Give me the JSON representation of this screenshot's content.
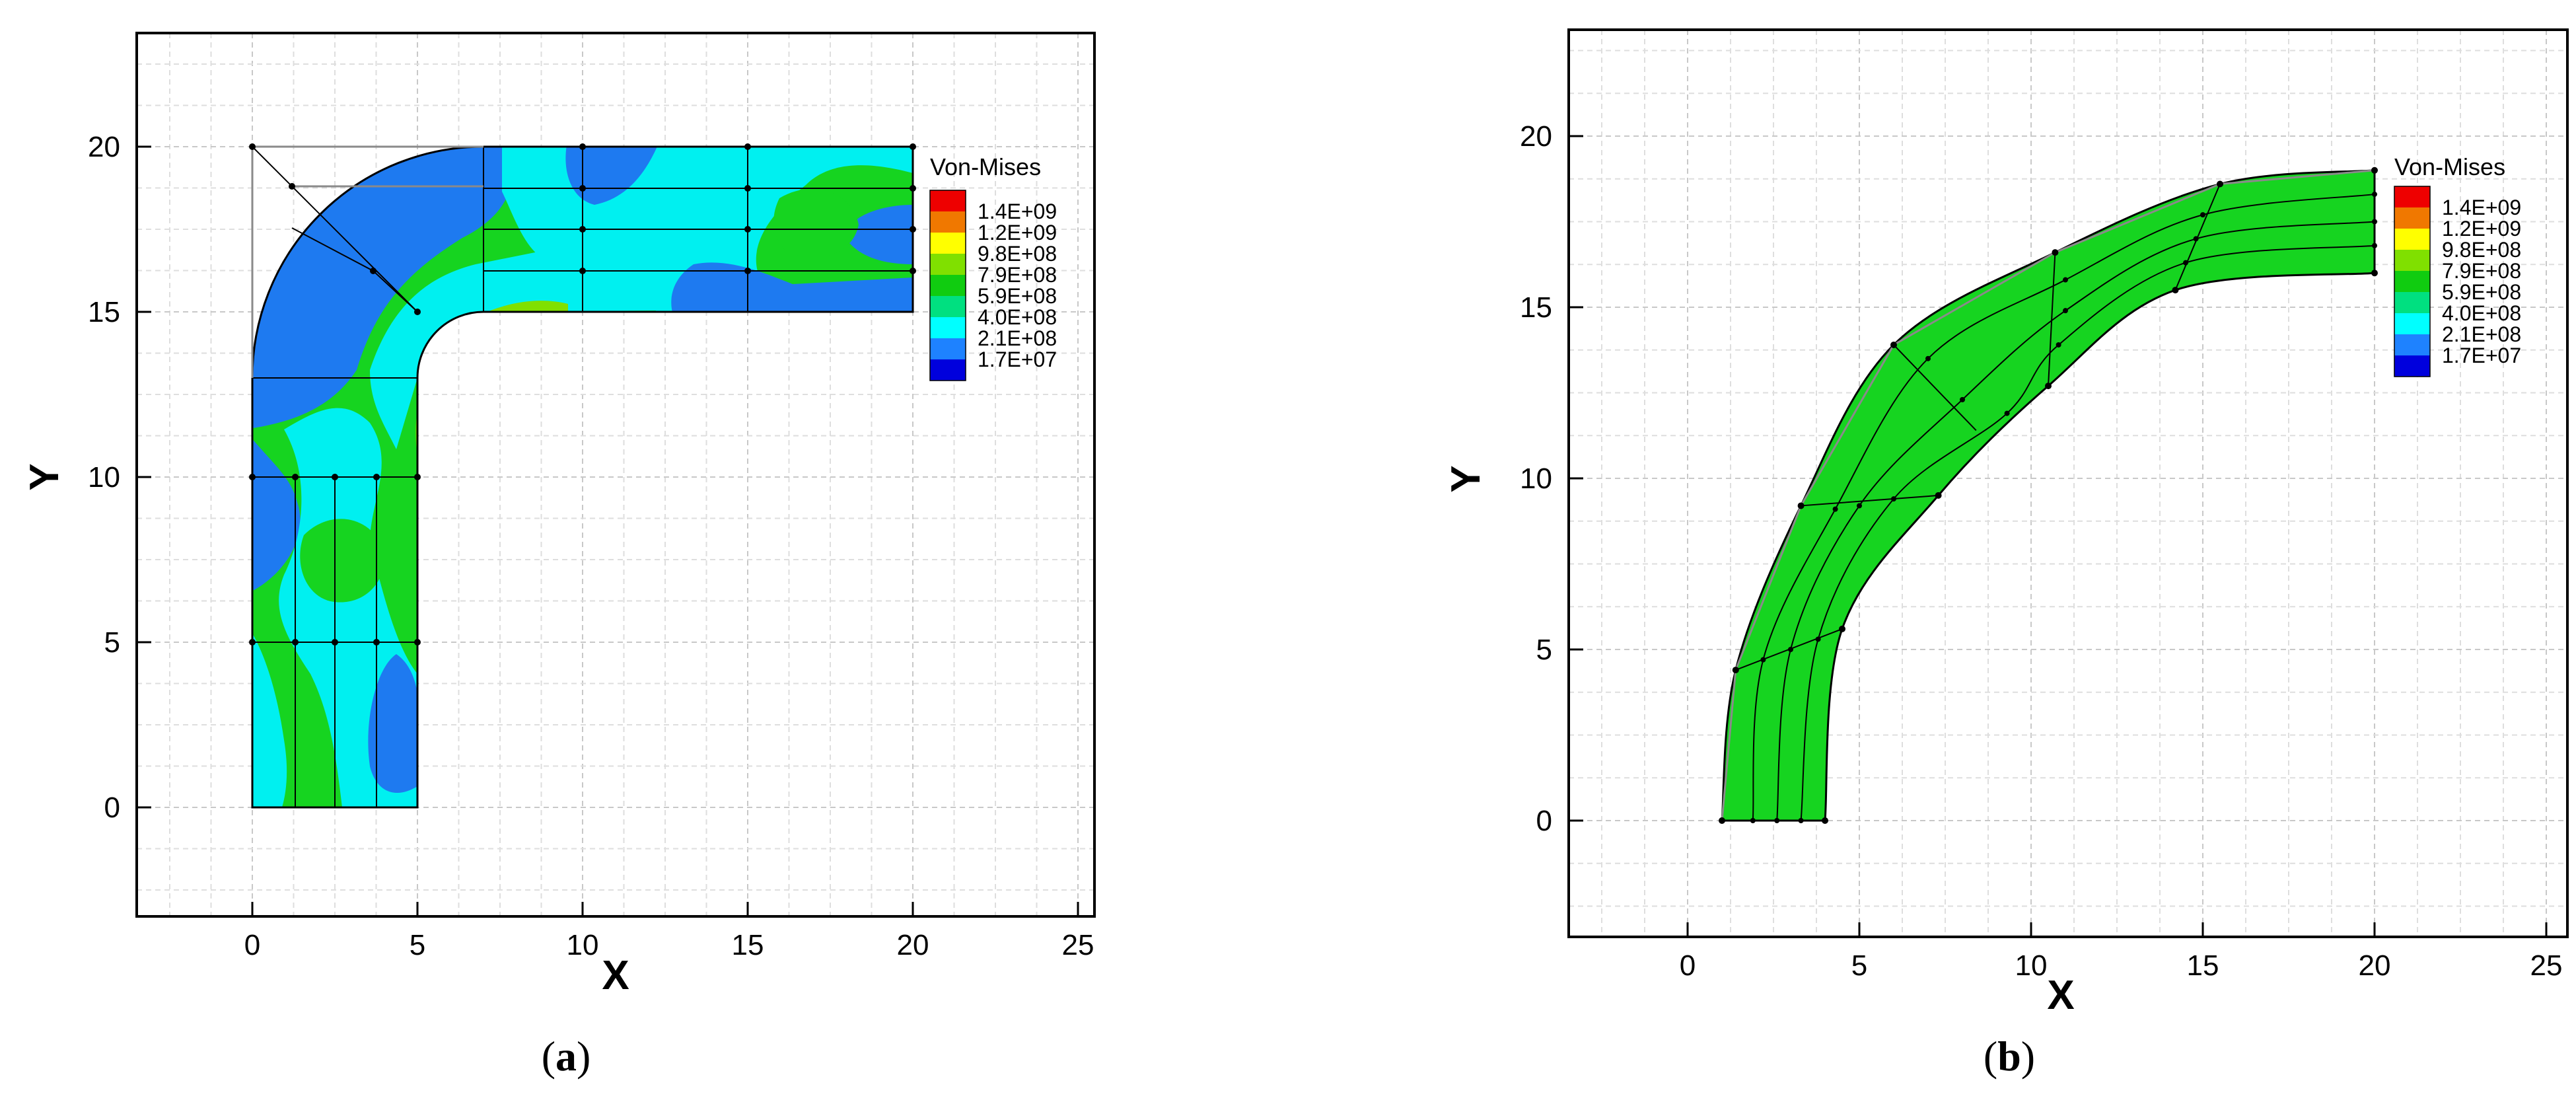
{
  "chart_data": [
    {
      "type": "contour",
      "panel": "a",
      "caption_open": "(",
      "caption_letter": "a",
      "caption_close": ")",
      "xlabel": "X",
      "ylabel": "Y",
      "xlim": [
        -3.5,
        25.5
      ],
      "ylim": [
        -3.3,
        23.2
      ],
      "x_ticks": [
        0,
        5,
        10,
        15,
        20,
        25
      ],
      "y_ticks": [
        0,
        5,
        10,
        15,
        20
      ],
      "x_tick_labels": [
        "0",
        "5",
        "10",
        "15",
        "20",
        "25"
      ],
      "y_tick_labels": [
        "0",
        "5",
        "10",
        "15",
        "20"
      ],
      "grid": true,
      "legend_title": "Von-Mises",
      "legend_levels": [
        "1.4E+09",
        "1.2E+09",
        "9.8E+08",
        "7.9E+08",
        "5.9E+08",
        "4.0E+08",
        "2.1E+08",
        "1.7E+07"
      ],
      "legend_colors": [
        "#ee0000",
        "#f07800",
        "#ffff00",
        "#80e000",
        "#10cc10",
        "#00e080",
        "#00ffff",
        "#1e82ff",
        "#0000dd"
      ],
      "legend_placement": "right",
      "fill_color": "#16d420",
      "mesh_cols_x": [
        0,
        1.25,
        2.5,
        3.75,
        5
      ],
      "mesh_rows_y": [
        15,
        16.25,
        17.5,
        18.75,
        20
      ],
      "mesh_col_x_arm": [
        5,
        10,
        15,
        20
      ],
      "mesh_row_y_arm": [
        0,
        5,
        10
      ]
    },
    {
      "type": "contour",
      "panel": "b",
      "caption_open": "(",
      "caption_letter": "b",
      "caption_close": ")",
      "xlabel": "X",
      "ylabel": "Y",
      "xlim": [
        -3.5,
        25.5
      ],
      "ylim": [
        -3.4,
        23.2
      ],
      "x_ticks": [
        0,
        5,
        10,
        15,
        20,
        25
      ],
      "y_ticks": [
        0,
        5,
        10,
        15,
        20
      ],
      "x_tick_labels": [
        "0",
        "5",
        "10",
        "15",
        "20",
        "25"
      ],
      "y_tick_labels": [
        "0",
        "5",
        "10",
        "15",
        "20"
      ],
      "grid": true,
      "legend_title": "Von-Mises",
      "legend_levels": [
        "1.4E+09",
        "1.2E+09",
        "9.8E+08",
        "7.9E+08",
        "5.9E+08",
        "4.0E+08",
        "2.1E+08",
        "1.7E+07"
      ],
      "legend_colors": [
        "#ee0000",
        "#f07800",
        "#ffff00",
        "#80e000",
        "#10cc10",
        "#00e080",
        "#00ffff",
        "#1e82ff",
        "#0000dd"
      ],
      "legend_placement": "right",
      "fill_color": "#16d420",
      "outer_curve": [
        [
          1,
          0
        ],
        [
          1.4,
          4.4
        ],
        [
          3.3,
          9.2
        ],
        [
          6,
          13.9
        ],
        [
          10.7,
          16.6
        ],
        [
          15.5,
          18.6
        ],
        [
          20,
          19
        ]
      ],
      "inner_curve": [
        [
          4,
          0
        ],
        [
          4.5,
          5.6
        ],
        [
          7.3,
          9.5
        ],
        [
          10.5,
          12.7
        ],
        [
          14.2,
          15.5
        ],
        [
          20,
          16
        ]
      ],
      "mesh_lines": [
        [
          [
            1.9,
            0
          ],
          [
            2.2,
            4.7
          ],
          [
            4.3,
            9.1
          ],
          [
            7,
            13.5
          ],
          [
            11,
            15.8
          ],
          [
            15,
            17.7
          ],
          [
            20,
            18.3
          ]
        ],
        [
          [
            2.6,
            0
          ],
          [
            3,
            5
          ],
          [
            5,
            9.2
          ],
          [
            8,
            12.3
          ],
          [
            11,
            14.9
          ],
          [
            14.8,
            17
          ],
          [
            20,
            17.5
          ]
        ],
        [
          [
            3.3,
            0
          ],
          [
            3.8,
            5.3
          ],
          [
            6,
            9.4
          ],
          [
            9.3,
            11.9
          ],
          [
            10.8,
            13.9
          ],
          [
            14.5,
            16.3
          ],
          [
            20,
            16.8
          ]
        ]
      ],
      "mesh_spokes": [
        [
          [
            1.4,
            4.4
          ],
          [
            4.5,
            5.6
          ]
        ],
        [
          [
            3.3,
            9.2
          ],
          [
            7.3,
            9.5
          ]
        ],
        [
          [
            6,
            13.9
          ],
          [
            8.4,
            11.4
          ]
        ],
        [
          [
            10.7,
            16.6
          ],
          [
            10.5,
            12.7
          ]
        ],
        [
          [
            15.5,
            18.6
          ],
          [
            14.2,
            15.5
          ]
        ]
      ]
    }
  ]
}
